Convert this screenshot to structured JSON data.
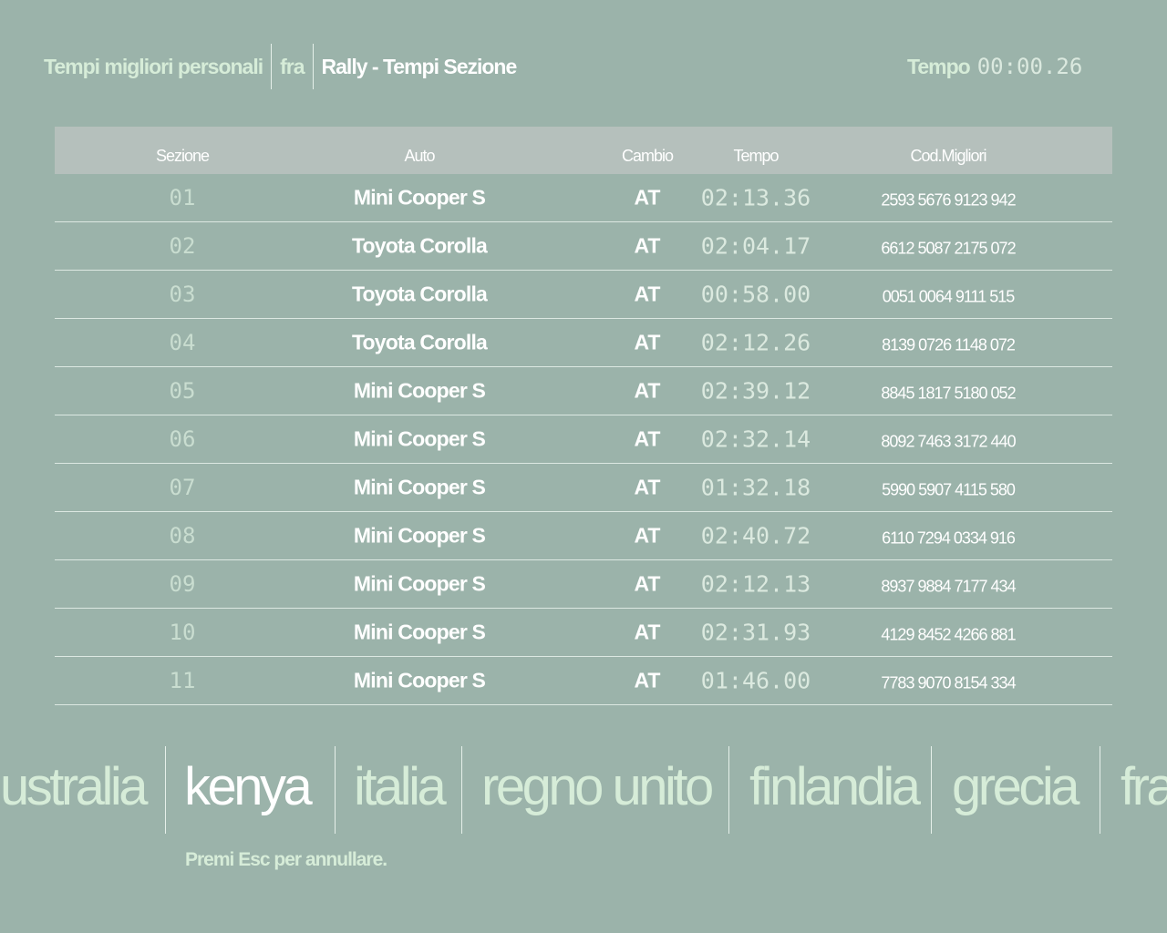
{
  "header": {
    "section_label": "Tempi migliori personali",
    "filter": "fra",
    "title": "Rally - Tempi Sezione",
    "time_label": "Tempo",
    "time_value": "00:00.26"
  },
  "table": {
    "columns": [
      "Sezione",
      "Auto",
      "Cambio",
      "Tempo",
      "Cod.Migliori"
    ],
    "rows": [
      {
        "sezione": "01",
        "auto": "Mini Cooper S",
        "cambio": "AT",
        "tempo": "02:13.36",
        "cod": "2593 5676 9123 942"
      },
      {
        "sezione": "02",
        "auto": "Toyota Corolla",
        "cambio": "AT",
        "tempo": "02:04.17",
        "cod": "6612 5087 2175 072"
      },
      {
        "sezione": "03",
        "auto": "Toyota Corolla",
        "cambio": "AT",
        "tempo": "00:58.00",
        "cod": "0051 0064 9111 515"
      },
      {
        "sezione": "04",
        "auto": "Toyota Corolla",
        "cambio": "AT",
        "tempo": "02:12.26",
        "cod": "8139 0726 1148 072"
      },
      {
        "sezione": "05",
        "auto": "Mini Cooper S",
        "cambio": "AT",
        "tempo": "02:39.12",
        "cod": "8845 1817 5180 052"
      },
      {
        "sezione": "06",
        "auto": "Mini Cooper S",
        "cambio": "AT",
        "tempo": "02:32.14",
        "cod": "8092 7463 3172 440"
      },
      {
        "sezione": "07",
        "auto": "Mini Cooper S",
        "cambio": "AT",
        "tempo": "01:32.18",
        "cod": "5990 5907 4115 580"
      },
      {
        "sezione": "08",
        "auto": "Mini Cooper S",
        "cambio": "AT",
        "tempo": "02:40.72",
        "cod": "6110 7294 0334 916"
      },
      {
        "sezione": "09",
        "auto": "Mini Cooper S",
        "cambio": "AT",
        "tempo": "02:12.13",
        "cod": "8937 9884 7177 434"
      },
      {
        "sezione": "10",
        "auto": "Mini Cooper S",
        "cambio": "AT",
        "tempo": "02:31.93",
        "cod": "4129 8452 4266 881"
      },
      {
        "sezione": "11",
        "auto": "Mini Cooper S",
        "cambio": "AT",
        "tempo": "01:46.00",
        "cod": "7783 9070 8154 334"
      }
    ]
  },
  "countries": {
    "items": [
      "ustralia",
      "kenya",
      "italia",
      "regno unito",
      "finlandia",
      "grecia",
      "fra"
    ],
    "selected": "kenya"
  },
  "hint": "Premi Esc per annullare.",
  "colors": {
    "background": "#9bb3aa",
    "header_bar": "#b5c0bc",
    "pale_text": "#d6ecd8",
    "selected": "#ffffff"
  }
}
